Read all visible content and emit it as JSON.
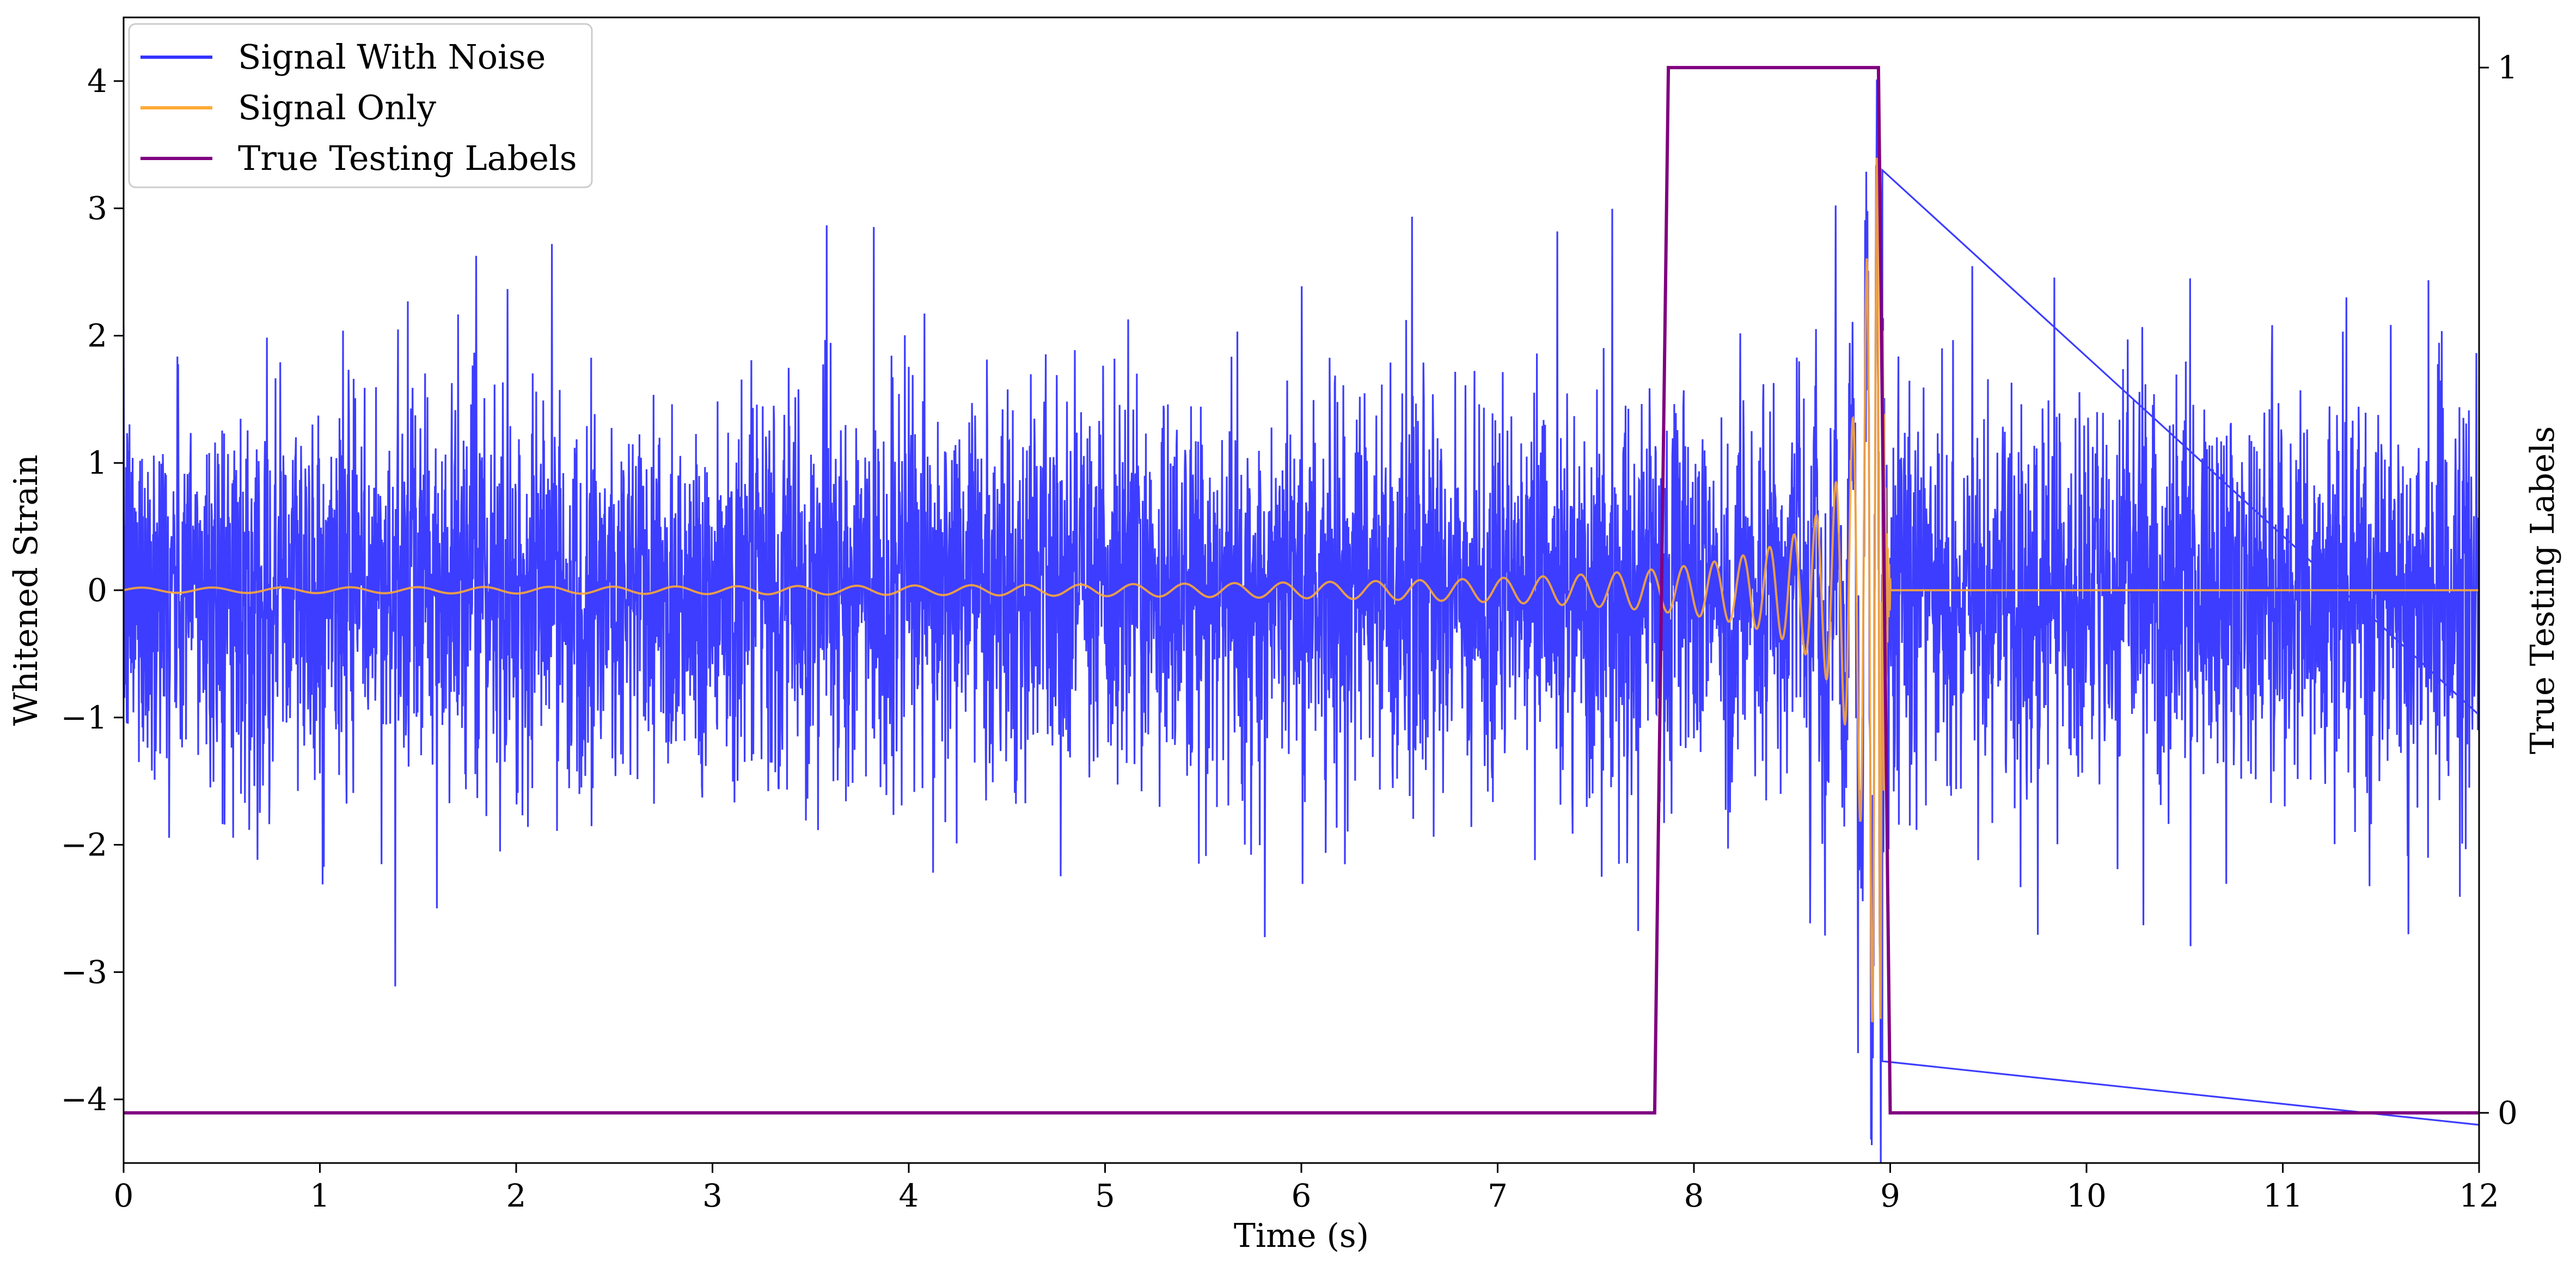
{
  "chart_data": {
    "type": "line",
    "title": "",
    "xlabel": "Time (s)",
    "ylabel": "Whitened Strain",
    "y2label": "True Testing Labels",
    "xlim": [
      0,
      12
    ],
    "ylim": [
      -4.5,
      4.5
    ],
    "y2lim": [
      -0.048,
      1.048
    ],
    "x_ticks": [
      0,
      1,
      2,
      3,
      4,
      5,
      6,
      7,
      8,
      9,
      10,
      11,
      12
    ],
    "y_ticks": [
      -4,
      -3,
      -2,
      -1,
      0,
      1,
      2,
      3,
      4
    ],
    "y2_ticks": [
      0,
      1
    ],
    "grid": false,
    "legend_position": "top-left",
    "series": [
      {
        "name": "Signal With Noise",
        "axis": "left",
        "color": "#3333ff",
        "noise_std": 0.75,
        "noise_peak_max": 2.9,
        "noise_peak_min": -3.1,
        "note_points": [
          [
            8.96,
            3.3
          ],
          [
            8.96,
            -3.7
          ],
          [
            12.0,
            -4.2
          ]
        ]
      },
      {
        "name": "Signal Only",
        "axis": "left",
        "color": "#ffaa33",
        "chirp": {
          "start": 0.0,
          "merger": 8.96,
          "ringdown_end": 9.0,
          "amplitude_start": 0.02,
          "amplitude_at_8": 0.2,
          "amplitude_peak": 3.4,
          "min_value": -2.8
        }
      },
      {
        "name": "True Testing Labels",
        "axis": "right",
        "color": "#800080",
        "x": [
          0,
          7.8,
          7.87,
          8.94,
          9.0,
          12
        ],
        "y": [
          0,
          0,
          1,
          1,
          0,
          0
        ]
      }
    ]
  }
}
